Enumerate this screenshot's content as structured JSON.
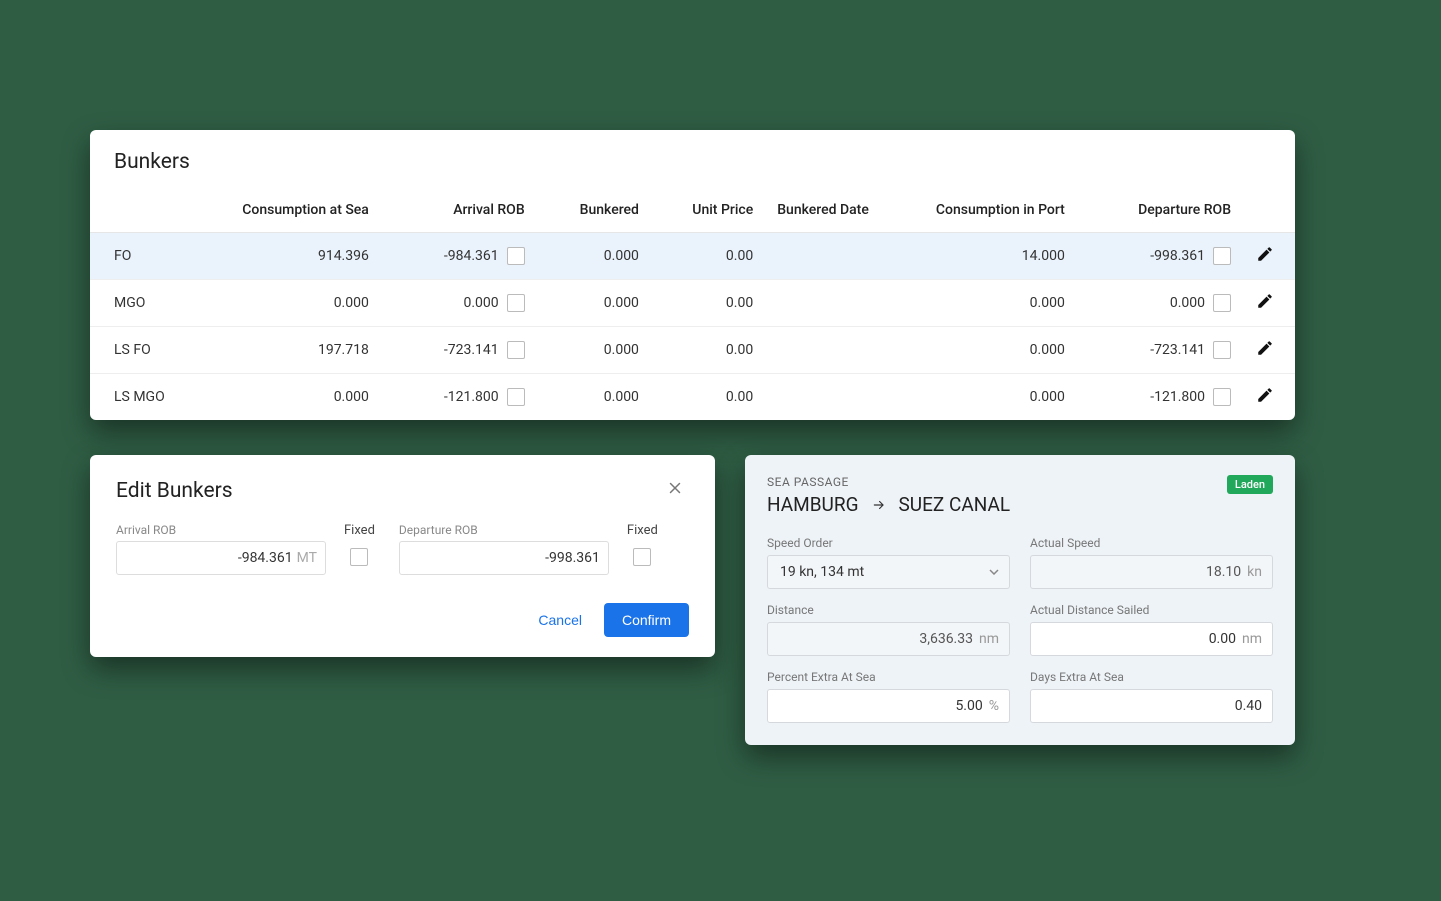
{
  "bunkers": {
    "title": "Bunkers",
    "columns": {
      "type": "",
      "consumption_sea": "Consumption at Sea",
      "arrival_rob": "Arrival ROB",
      "bunkered": "Bunkered",
      "unit_price": "Unit Price",
      "bunkered_date": "Bunkered Date",
      "consumption_port": "Consumption in Port",
      "departure_rob": "Departure ROB"
    },
    "rows": [
      {
        "type": "FO",
        "cons_sea": "914.396",
        "arr_rob": "-984.361",
        "bunkered": "0.000",
        "unit_price": "0.00",
        "bunkered_date": "",
        "cons_port": "14.000",
        "dep_rob": "-998.361",
        "highlight": true
      },
      {
        "type": "MGO",
        "cons_sea": "0.000",
        "arr_rob": "0.000",
        "bunkered": "0.000",
        "unit_price": "0.00",
        "bunkered_date": "",
        "cons_port": "0.000",
        "dep_rob": "0.000",
        "highlight": false
      },
      {
        "type": "LS FO",
        "cons_sea": "197.718",
        "arr_rob": "-723.141",
        "bunkered": "0.000",
        "unit_price": "0.00",
        "bunkered_date": "",
        "cons_port": "0.000",
        "dep_rob": "-723.141",
        "highlight": false
      },
      {
        "type": "LS MGO",
        "cons_sea": "0.000",
        "arr_rob": "-121.800",
        "bunkered": "0.000",
        "unit_price": "0.00",
        "bunkered_date": "",
        "cons_port": "0.000",
        "dep_rob": "-121.800",
        "highlight": false
      }
    ]
  },
  "edit_dialog": {
    "title": "Edit Bunkers",
    "arrival_rob_label": "Arrival ROB",
    "arrival_rob_value": "-984.361",
    "arrival_rob_unit": "MT",
    "departure_rob_label": "Departure ROB",
    "departure_rob_value": "-998.361",
    "fixed_label": "Fixed",
    "cancel": "Cancel",
    "confirm": "Confirm"
  },
  "sea_passage": {
    "subtitle": "SEA PASSAGE",
    "from": "HAMBURG",
    "to": "SUEZ CANAL",
    "badge": "Laden",
    "fields": {
      "speed_order": {
        "label": "Speed Order",
        "value": "19 kn, 134 mt"
      },
      "actual_speed": {
        "label": "Actual Speed",
        "value": "18.10",
        "unit": "kn"
      },
      "distance": {
        "label": "Distance",
        "value": "3,636.33",
        "unit": "nm"
      },
      "actual_distance": {
        "label": "Actual Distance Sailed",
        "value": "0.00",
        "unit": "nm"
      },
      "pct_extra": {
        "label": "Percent Extra At Sea",
        "value": "5.00",
        "unit": "%"
      },
      "days_extra": {
        "label": "Days Extra At Sea",
        "value": "0.40"
      }
    }
  },
  "colors": {
    "page_bg": "#2f5d44",
    "panel_bg": "#ffffff",
    "sea_panel_bg": "#eef3f7",
    "highlight_row": "#eaf2fb",
    "primary_btn": "#1a73e8",
    "badge_bg": "#22a85b"
  }
}
